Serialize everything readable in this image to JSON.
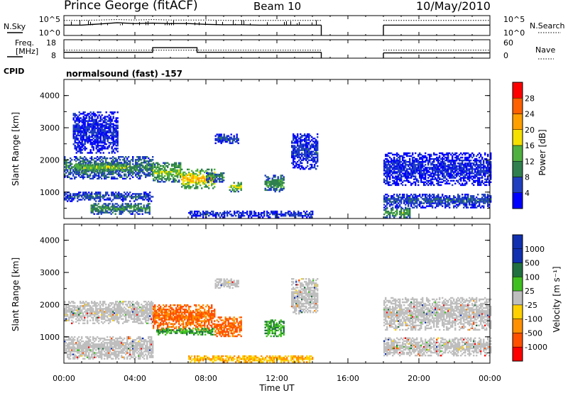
{
  "header": {
    "station": "Prince George (fitACF)",
    "beam": "Beam 10",
    "date": "10/May/2010"
  },
  "params": {
    "nsky_label": "N.Sky",
    "nsearch_label": "N.Search",
    "freq_label_line1": "Freq.",
    "freq_label_line2": "[MHz]",
    "nave_label": "Nave",
    "cpid_label": "CPID",
    "cpid_value": "normalsound (fast) -157",
    "noise_left_ticks": [
      "10^5",
      "10^0"
    ],
    "noise_right_ticks": [
      "10^5",
      "10^0"
    ],
    "freq_ticks": [
      "18",
      "8"
    ],
    "nave_ticks": [
      "60",
      "0"
    ]
  },
  "colors": {
    "power_scale": [
      "#0000ff",
      "#1f3fbf",
      "#2f7f4f",
      "#50b040",
      "#f5e000",
      "#ffa000",
      "#ff6000",
      "#ff0000"
    ],
    "velocity_scale": [
      "#ff0000",
      "#ff5000",
      "#ff9000",
      "#ffd000",
      "#bebebe",
      "#40c020",
      "#207040",
      "#1030b0"
    ],
    "ground_scatter": "#bebebe"
  },
  "chart_data": [
    {
      "type": "line",
      "title": "N.Sky / N.Search noise",
      "x": [
        "00:00",
        "01:00",
        "02:00",
        "03:00",
        "04:00",
        "05:00",
        "06:00",
        "07:00",
        "08:00",
        "09:00",
        "10:00",
        "11:00",
        "12:00",
        "13:00",
        "14:00",
        "14:30",
        "18:00",
        "19:00",
        "20:00",
        "21:00",
        "22:00",
        "23:00",
        "24:00"
      ],
      "series": [
        {
          "name": "N.Sky",
          "values": [
            2.6,
            2.6,
            2.9,
            3.2,
            3.0,
            3.1,
            3.0,
            3.0,
            2.8,
            2.7,
            2.7,
            2.6,
            2.6,
            2.6,
            2.6,
            2.6,
            2.6,
            2.6,
            2.6,
            2.6,
            2.6,
            2.6,
            2.6
          ]
        },
        {
          "name": "N.Search",
          "values": [
            3.8,
            3.8,
            3.9,
            4.0,
            3.9,
            4.0,
            3.9,
            3.9,
            3.9,
            3.8,
            3.8,
            3.8,
            3.8,
            3.8,
            3.8,
            3.8,
            3.8,
            3.8,
            3.8,
            3.8,
            3.8,
            3.8,
            3.8
          ]
        }
      ],
      "gap": [
        "14:30",
        "18:00"
      ]
    },
    {
      "type": "line",
      "title": "Freq. / Nave",
      "x": [
        "00:00",
        "04:00",
        "05:00",
        "07:30",
        "08:00",
        "14:30",
        "18:00",
        "24:00"
      ],
      "series": [
        {
          "name": "Freq. [MHz]",
          "values": [
            10.5,
            10.5,
            14.0,
            10.5,
            10.5,
            10.5,
            10.0,
            10.0
          ]
        },
        {
          "name": "Nave",
          "values": [
            20,
            20,
            20,
            20,
            20,
            20,
            20,
            20
          ]
        }
      ],
      "gap": [
        "14:30",
        "18:00"
      ]
    },
    {
      "type": "heatmap",
      "title": "Power",
      "xlabel": "",
      "ylabel": "Slant Range [km]",
      "ylim": [
        180,
        4500
      ],
      "yticks": [
        1000,
        2000,
        3000,
        4000
      ],
      "colorbar": {
        "label": "Power [dB]",
        "ticks": [
          4,
          8,
          12,
          16,
          20,
          24,
          28
        ],
        "range": [
          0,
          30
        ]
      },
      "regions": [
        {
          "t0": 0.0,
          "t1": 5.0,
          "r0": 1400,
          "r1": 2100,
          "level": 9
        },
        {
          "t0": 0.6,
          "t1": 3.6,
          "r0": 1600,
          "r1": 1900,
          "level": 14
        },
        {
          "t0": 0.0,
          "t1": 5.0,
          "r0": 700,
          "r1": 1000,
          "level": 6
        },
        {
          "t0": 1.5,
          "t1": 4.8,
          "r0": 300,
          "r1": 650,
          "level": 10
        },
        {
          "t0": 0.5,
          "t1": 3.0,
          "r0": 2200,
          "r1": 3500,
          "level": 4
        },
        {
          "t0": 5.0,
          "t1": 6.6,
          "r0": 1300,
          "r1": 1900,
          "level": 14
        },
        {
          "t0": 6.6,
          "t1": 8.5,
          "r0": 1100,
          "r1": 1700,
          "level": 19
        },
        {
          "t0": 8.0,
          "t1": 9.0,
          "r0": 1300,
          "r1": 1600,
          "level": 10
        },
        {
          "t0": 9.3,
          "t1": 10.0,
          "r0": 1000,
          "r1": 1300,
          "level": 15
        },
        {
          "t0": 8.5,
          "t1": 9.8,
          "r0": 2500,
          "r1": 2800,
          "level": 6
        },
        {
          "t0": 11.3,
          "t1": 12.4,
          "r0": 1000,
          "r1": 1500,
          "level": 11
        },
        {
          "t0": 12.8,
          "t1": 14.3,
          "r0": 1700,
          "r1": 2800,
          "level": 5
        },
        {
          "t0": 7.0,
          "t1": 14.0,
          "r0": 200,
          "r1": 400,
          "level": 5
        },
        {
          "t0": 18.0,
          "t1": 24.0,
          "r0": 500,
          "r1": 950,
          "level": 6
        },
        {
          "t0": 18.0,
          "t1": 19.5,
          "r0": 200,
          "r1": 500,
          "level": 12
        },
        {
          "t0": 18.0,
          "t1": 24.0,
          "r0": 1200,
          "r1": 2200,
          "level": 4
        }
      ]
    },
    {
      "type": "heatmap",
      "title": "Velocity",
      "xlabel": "Time UT",
      "ylabel": "Slant Range [km]",
      "ylim": [
        180,
        4500
      ],
      "yticks": [
        1000,
        2000,
        3000,
        4000
      ],
      "xticks": [
        "00:00",
        "04:00",
        "08:00",
        "12:00",
        "16:00",
        "20:00",
        "00:00"
      ],
      "colorbar": {
        "label": "Velocity [m s⁻¹]",
        "ticks": [
          1000,
          500,
          100,
          25,
          -25,
          -100,
          -500,
          -1000
        ]
      },
      "regions": [
        {
          "t0": 0.0,
          "t1": 5.0,
          "r0": 1400,
          "r1": 2100,
          "class": "ground"
        },
        {
          "t0": 0.0,
          "t1": 5.0,
          "r0": 300,
          "r1": 1000,
          "class": "ground"
        },
        {
          "t0": 5.0,
          "t1": 8.5,
          "r0": 1200,
          "r1": 2000,
          "class": "neg100"
        },
        {
          "t0": 5.2,
          "t1": 8.5,
          "r0": 1050,
          "r1": 1250,
          "class": "pos100"
        },
        {
          "t0": 8.5,
          "t1": 10.0,
          "r0": 1000,
          "r1": 1600,
          "class": "neg100"
        },
        {
          "t0": 11.3,
          "t1": 12.4,
          "r0": 1000,
          "r1": 1500,
          "class": "pos100"
        },
        {
          "t0": 8.5,
          "t1": 9.8,
          "r0": 2500,
          "r1": 2800,
          "class": "ground"
        },
        {
          "t0": 12.8,
          "t1": 14.3,
          "r0": 1700,
          "r1": 2800,
          "class": "ground"
        },
        {
          "t0": 7.0,
          "t1": 14.0,
          "r0": 200,
          "r1": 400,
          "class": "neg25"
        },
        {
          "t0": 18.0,
          "t1": 24.0,
          "r0": 400,
          "r1": 950,
          "class": "ground"
        },
        {
          "t0": 18.0,
          "t1": 24.0,
          "r0": 1200,
          "r1": 2200,
          "class": "ground"
        }
      ]
    }
  ],
  "axis": {
    "xticks": [
      "00:00",
      "04:00",
      "08:00",
      "12:00",
      "16:00",
      "20:00",
      "00:00"
    ],
    "xlabel": "Time UT",
    "ylabel": "Slant Range [km]",
    "yticks": [
      "1000",
      "2000",
      "3000",
      "4000"
    ],
    "power_label": "Power [dB]",
    "power_ticks": [
      "28",
      "24",
      "20",
      "16",
      "12",
      "8",
      "4"
    ],
    "velocity_label": "Velocity [m s⁻¹]",
    "velocity_ticks": [
      "1000",
      "500",
      "100",
      "25",
      "-25",
      "-100",
      "-500",
      "-1000"
    ]
  }
}
